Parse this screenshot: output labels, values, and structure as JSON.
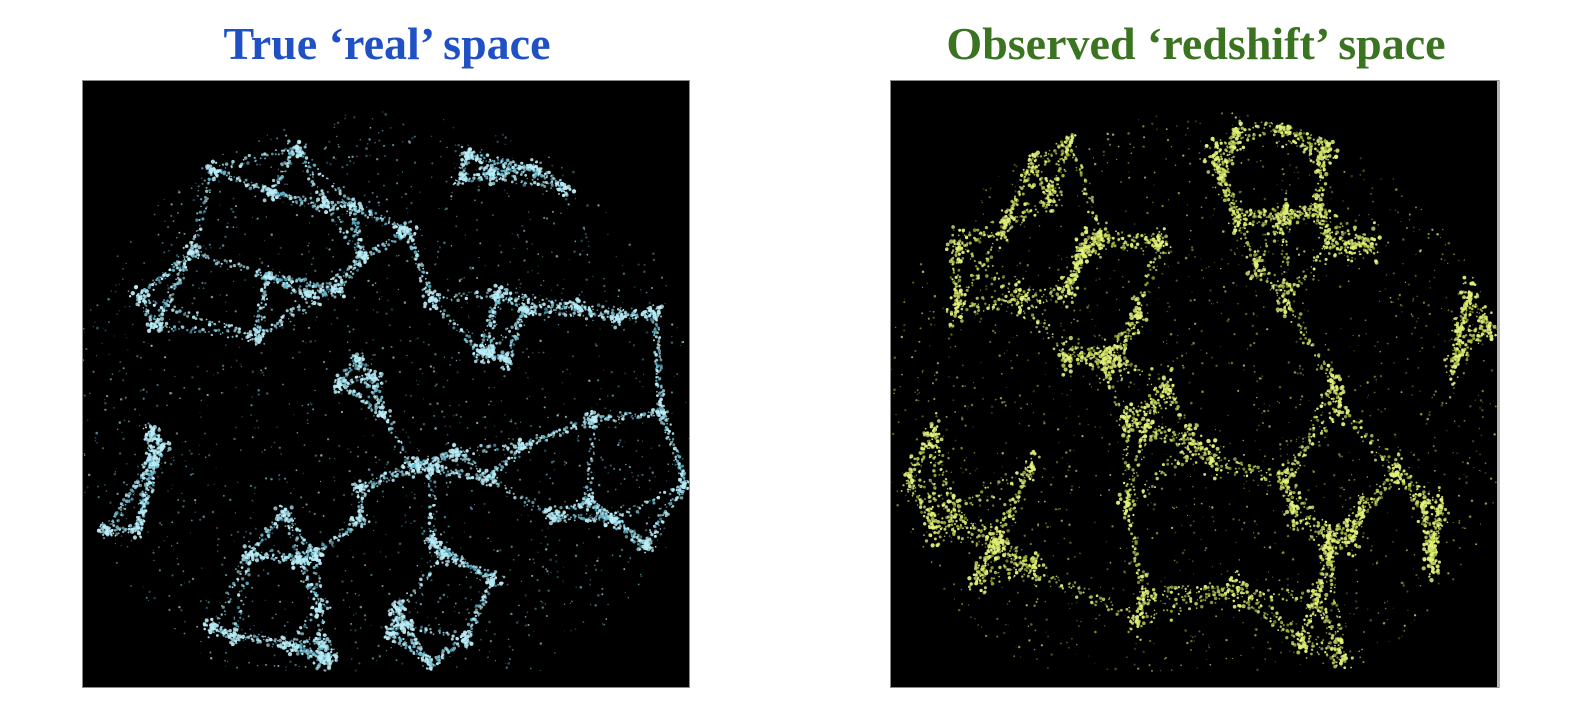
{
  "panels": [
    {
      "title": "True ‘real’ space",
      "title_color": "#1f50c4",
      "point_color": "#b9ecf6",
      "glow_color": "#5fb8d0",
      "subject": "galaxy distribution simulation (real space)"
    },
    {
      "title": "Observed ‘redshift’ space",
      "title_color": "#3a7420",
      "point_color": "#e3f07a",
      "glow_color": "#a6c23a",
      "subject": "galaxy distribution simulation (redshift space)"
    }
  ],
  "background_color": "#000000"
}
